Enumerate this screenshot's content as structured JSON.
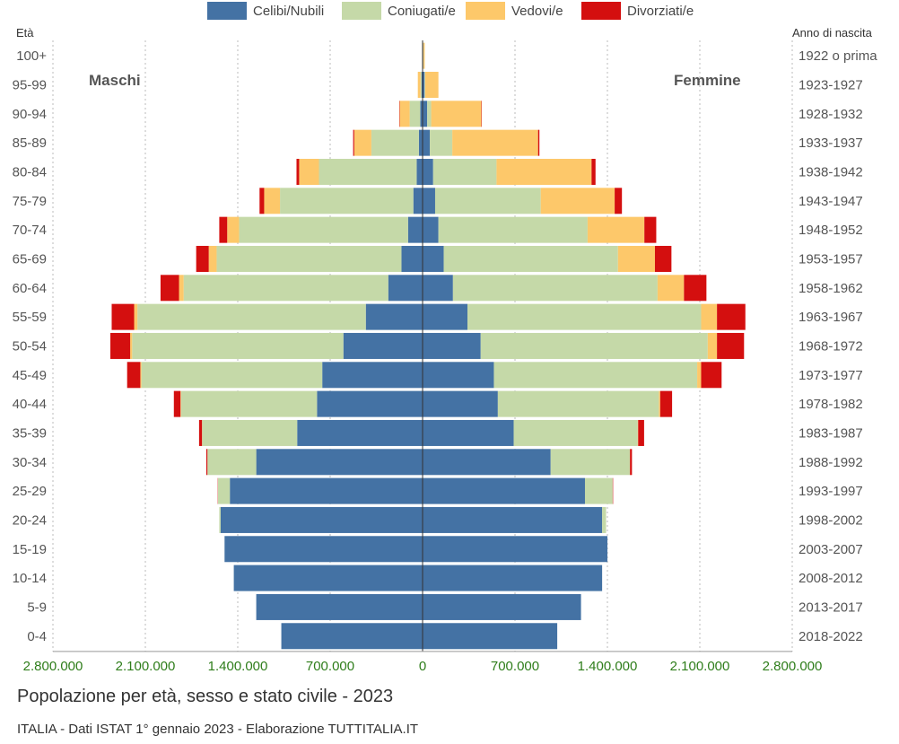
{
  "legend": {
    "celibi": "Celibi/Nubili",
    "coniugati": "Coniugati/e",
    "vedovi": "Vedovi/e",
    "divorziati": "Divorziati/e"
  },
  "captions": {
    "title": "Popolazione per età, sesso e stato civile - 2023",
    "source": "ITALIA - Dati ISTAT 1° gennaio 2023 - Elaborazione TUTTITALIA.IT"
  },
  "chart_data": {
    "type": "bar",
    "orientation": "horizontal-population-pyramid",
    "left_axis_label": "Età",
    "right_axis_label": "Anno di nascita",
    "left_side_label": "Maschi",
    "right_side_label": "Femmine",
    "xlim": [
      -2800000,
      2800000
    ],
    "x_ticks": [
      -2800000,
      -2100000,
      -1400000,
      -700000,
      0,
      700000,
      1400000,
      2100000,
      2800000
    ],
    "x_tick_labels": [
      "2.800.000",
      "2.100.000",
      "1.400.000",
      "700.000",
      "0",
      "700.000",
      "1.400.000",
      "2.100.000",
      "2.800.000"
    ],
    "grid": true,
    "legend_position": "top",
    "colors": {
      "celibi": "#4472a4",
      "coniugati": "#c5d9a8",
      "vedovi": "#fdc86a",
      "divorziati": "#d40f0f"
    },
    "categories": [
      "100+",
      "95-99",
      "90-94",
      "85-89",
      "80-84",
      "75-79",
      "70-74",
      "65-69",
      "60-64",
      "55-59",
      "50-54",
      "45-49",
      "40-44",
      "35-39",
      "30-34",
      "25-29",
      "20-24",
      "15-19",
      "10-14",
      "5-9",
      "0-4"
    ],
    "birth_years": [
      "1922 o prima",
      "1923-1927",
      "1928-1932",
      "1933-1937",
      "1938-1942",
      "1943-1947",
      "1948-1952",
      "1953-1957",
      "1958-1962",
      "1963-1967",
      "1968-1972",
      "1973-1977",
      "1978-1982",
      "1983-1987",
      "1988-1992",
      "1993-1997",
      "1998-2002",
      "2003-2007",
      "2008-2012",
      "2013-2017",
      "2018-2022"
    ],
    "series": [
      {
        "name": "Celibi/Nubili",
        "key": "celibi",
        "males": [
          1000,
          8000,
          18000,
          28000,
          45000,
          70000,
          110000,
          160000,
          260000,
          430000,
          600000,
          760000,
          800000,
          950000,
          1260000,
          1460000,
          1530000,
          1500000,
          1430000,
          1260000,
          1070000
        ],
        "females": [
          5000,
          15000,
          35000,
          55000,
          80000,
          95000,
          120000,
          160000,
          230000,
          340000,
          440000,
          540000,
          570000,
          690000,
          970000,
          1230000,
          1360000,
          1400000,
          1360000,
          1200000,
          1020000
        ]
      },
      {
        "name": "Coniugati/e",
        "key": "coniugati",
        "males": [
          1000,
          8000,
          80000,
          360000,
          740000,
          1010000,
          1280000,
          1400000,
          1550000,
          1730000,
          1600000,
          1370000,
          1030000,
          720000,
          370000,
          90000,
          10000,
          0,
          0,
          0,
          0
        ],
        "females": [
          1000,
          5000,
          30000,
          170000,
          480000,
          800000,
          1130000,
          1320000,
          1550000,
          1770000,
          1720000,
          1540000,
          1220000,
          940000,
          600000,
          210000,
          30000,
          0,
          0,
          0,
          0
        ]
      },
      {
        "name": "Vedovi/e",
        "key": "vedovi",
        "males": [
          2000,
          20000,
          75000,
          130000,
          150000,
          120000,
          90000,
          60000,
          35000,
          25000,
          15000,
          8000,
          4000,
          1000,
          0,
          0,
          0,
          0,
          0,
          0,
          0
        ],
        "females": [
          10000,
          100000,
          380000,
          650000,
          720000,
          560000,
          430000,
          280000,
          200000,
          120000,
          70000,
          30000,
          10000,
          3000,
          1000,
          0,
          0,
          0,
          0,
          0,
          0
        ]
      },
      {
        "name": "Divorziati/e",
        "key": "divorziati",
        "males": [
          0,
          0,
          3000,
          8000,
          20000,
          35000,
          60000,
          95000,
          140000,
          170000,
          150000,
          100000,
          50000,
          22000,
          8000,
          2000,
          0,
          0,
          0,
          0,
          0
        ],
        "females": [
          0,
          0,
          3000,
          10000,
          30000,
          55000,
          90000,
          125000,
          170000,
          215000,
          205000,
          155000,
          90000,
          45000,
          15000,
          3000,
          0,
          0,
          0,
          0,
          0
        ]
      }
    ]
  }
}
